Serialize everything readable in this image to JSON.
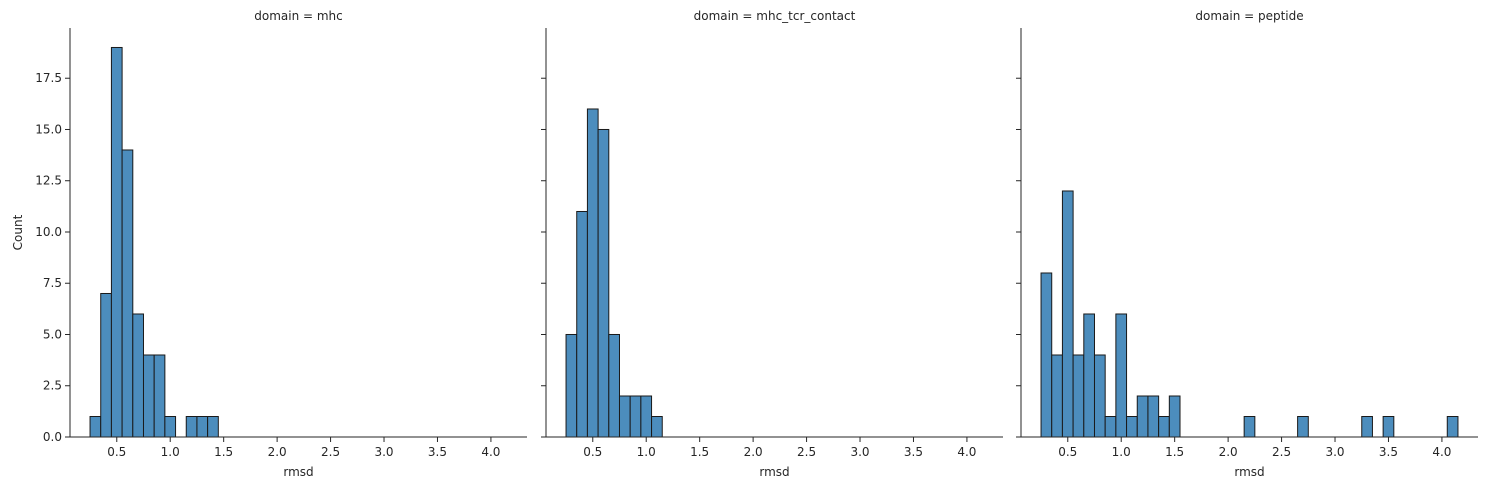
{
  "chart_data": {
    "type": "bar",
    "colors": {
      "bar_fill": "#4c8dbd",
      "bar_edge": "#1a1a1a",
      "axis": "#262626"
    },
    "xlim": [
      0.0625,
      4.3375
    ],
    "ylim": [
      0,
      19.95
    ],
    "xticks": [
      0.5,
      1.0,
      1.5,
      2.0,
      2.5,
      3.0,
      3.5,
      4.0
    ],
    "xtick_labels": [
      "0.5",
      "1.0",
      "1.5",
      "2.0",
      "2.5",
      "3.0",
      "3.5",
      "4.0"
    ],
    "yticks": [
      0.0,
      2.5,
      5.0,
      7.5,
      10.0,
      12.5,
      15.0,
      17.5
    ],
    "ytick_labels": [
      "0.0",
      "2.5",
      "5.0",
      "7.5",
      "10.0",
      "12.5",
      "15.0",
      "17.5"
    ],
    "bin_edges_start": 0.25,
    "bin_width": 0.1,
    "ylabel": "Count",
    "facets": [
      {
        "title": "domain = mhc",
        "xlabel": "rmsd",
        "counts": [
          1,
          7,
          19,
          14,
          6,
          4,
          4,
          1,
          0,
          1,
          1,
          1
        ]
      },
      {
        "title": "domain = mhc_tcr_contact",
        "xlabel": "rmsd",
        "counts": [
          5,
          11,
          16,
          15,
          5,
          2,
          2,
          2,
          1
        ]
      },
      {
        "title": "domain = peptide",
        "xlabel": "rmsd",
        "counts": [
          8,
          4,
          12,
          4,
          6,
          4,
          1,
          6,
          1,
          2,
          2,
          1,
          2,
          0,
          0,
          0,
          0,
          0,
          0,
          1,
          0,
          0,
          0,
          0,
          1,
          0,
          0,
          0,
          0,
          0,
          1,
          0,
          1,
          0,
          0,
          0,
          0,
          0,
          1
        ]
      }
    ]
  }
}
